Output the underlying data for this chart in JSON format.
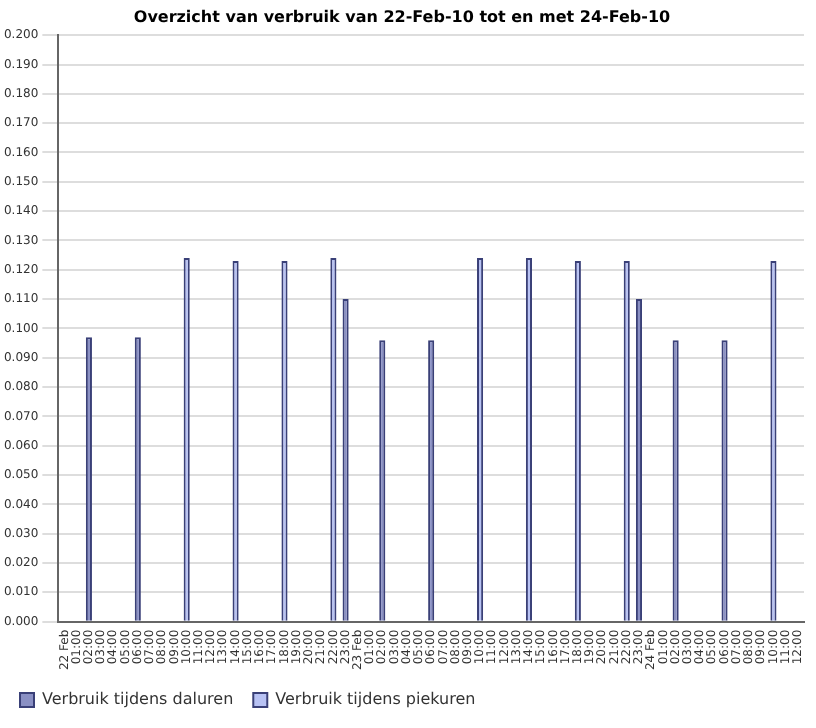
{
  "chart_data": {
    "type": "bar",
    "title": "Overzicht van verbruik van 22-Feb-10 tot en met 24-Feb-10",
    "categories": [
      "22 Feb",
      "01:00",
      "02:00",
      "03:00",
      "04:00",
      "05:00",
      "06:00",
      "07:00",
      "08:00",
      "09:00",
      "10:00",
      "11:00",
      "12:00",
      "13:00",
      "14:00",
      "15:00",
      "16:00",
      "17:00",
      "18:00",
      "19:00",
      "20:00",
      "21:00",
      "22:00",
      "23:00",
      "23 Feb",
      "01:00",
      "02:00",
      "03:00",
      "04:00",
      "05:00",
      "06:00",
      "07:00",
      "08:00",
      "09:00",
      "10:00",
      "11:00",
      "12:00",
      "13:00",
      "14:00",
      "15:00",
      "16:00",
      "17:00",
      "18:00",
      "19:00",
      "20:00",
      "21:00",
      "22:00",
      "23:00",
      "24 Feb",
      "01:00",
      "02:00",
      "03:00",
      "04:00",
      "05:00",
      "06:00",
      "07:00",
      "08:00",
      "09:00",
      "10:00",
      "11:00",
      "12:00"
    ],
    "series": [
      {
        "name": "Verbruik tijdens daluren",
        "color": "#8a90c4",
        "values": [
          null,
          null,
          0.097,
          null,
          null,
          null,
          0.097,
          null,
          null,
          null,
          null,
          null,
          null,
          null,
          null,
          null,
          null,
          null,
          null,
          null,
          null,
          null,
          null,
          0.11,
          null,
          null,
          0.096,
          null,
          null,
          null,
          0.096,
          null,
          null,
          null,
          null,
          null,
          null,
          null,
          null,
          null,
          null,
          null,
          null,
          null,
          null,
          null,
          null,
          0.11,
          null,
          null,
          0.096,
          null,
          null,
          null,
          0.096,
          null,
          null,
          null,
          null,
          null,
          null
        ]
      },
      {
        "name": "Verbruik tijdens piekuren",
        "color": "#b8c2f4",
        "values": [
          null,
          null,
          null,
          null,
          null,
          null,
          null,
          null,
          null,
          null,
          0.124,
          null,
          null,
          null,
          0.123,
          null,
          null,
          null,
          0.123,
          null,
          null,
          null,
          0.124,
          null,
          null,
          null,
          null,
          null,
          null,
          null,
          null,
          null,
          null,
          null,
          0.124,
          null,
          null,
          null,
          0.124,
          null,
          null,
          null,
          0.123,
          null,
          null,
          null,
          0.123,
          null,
          null,
          null,
          null,
          null,
          null,
          null,
          null,
          null,
          null,
          null,
          0.123,
          null,
          null
        ]
      }
    ],
    "ylim": [
      0,
      0.2
    ],
    "yticks": [
      {
        "value": 0,
        "label": "0.000"
      },
      {
        "value": 0.01,
        "label": "0.010"
      },
      {
        "value": 0.02,
        "label": "0.020"
      },
      {
        "value": 0.03,
        "label": "0.030"
      },
      {
        "value": 0.04,
        "label": "0.040"
      },
      {
        "value": 0.05,
        "label": "0.050"
      },
      {
        "value": 0.06,
        "label": "0.060"
      },
      {
        "value": 0.07,
        "label": "0.070"
      },
      {
        "value": 0.08,
        "label": "0.080"
      },
      {
        "value": 0.09,
        "label": "0.090"
      },
      {
        "value": 0.1,
        "label": "0.100"
      },
      {
        "value": 0.11,
        "label": "0.110"
      },
      {
        "value": 0.12,
        "label": "0.120"
      },
      {
        "value": 0.13,
        "label": "0.130"
      },
      {
        "value": 0.14,
        "label": "0.140"
      },
      {
        "value": 0.15,
        "label": "0.150"
      },
      {
        "value": 0.16,
        "label": "0.160"
      },
      {
        "value": 0.17,
        "label": "0.170"
      },
      {
        "value": 0.18,
        "label": "0.180"
      },
      {
        "value": 0.19,
        "label": "0.190"
      },
      {
        "value": 0.2,
        "label": "0.200"
      }
    ],
    "grid": "y",
    "legend": "bottom"
  }
}
